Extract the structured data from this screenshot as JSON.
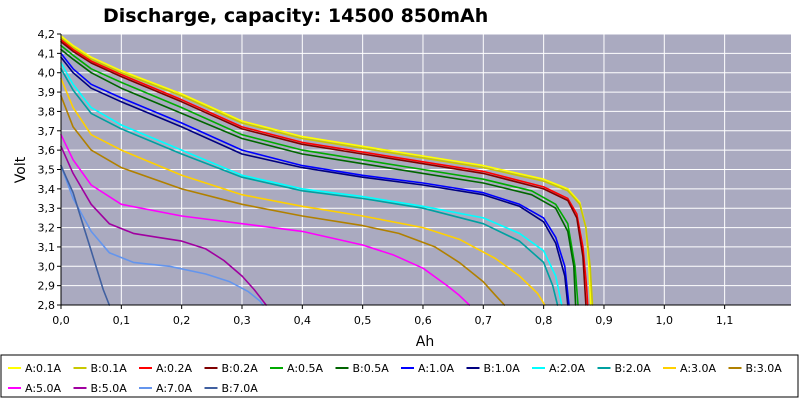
{
  "chart_data": {
    "type": "line",
    "title": "Discharge, capacity:  14500 850mAh",
    "xlabel": "Ah",
    "ylabel": "Volt",
    "xlim": [
      0,
      1.2
    ],
    "ylim": [
      2.8,
      4.2
    ],
    "xticks": [
      "0,0",
      "0,1",
      "0,2",
      "0,3",
      "0,4",
      "0,5",
      "0,6",
      "0,7",
      "0,8",
      "0,9",
      "1,0",
      "1,1"
    ],
    "yticks": [
      "4,2",
      "4,1",
      "4,0",
      "3,9",
      "3,8",
      "3,7",
      "3,6",
      "3,5",
      "3,4",
      "3,3",
      "3,2",
      "3,1",
      "3,0",
      "2,9",
      "2,8"
    ],
    "grid": true,
    "legend_position": "bottom",
    "colors": {
      "plot_background": "#aaaac0",
      "grid": "#ffffff"
    },
    "series": [
      {
        "name": "A:0.1A",
        "color": "#ffff00",
        "points": [
          [
            0,
            4.19
          ],
          [
            0.02,
            4.14
          ],
          [
            0.05,
            4.08
          ],
          [
            0.1,
            4.01
          ],
          [
            0.2,
            3.89
          ],
          [
            0.3,
            3.75
          ],
          [
            0.4,
            3.67
          ],
          [
            0.5,
            3.62
          ],
          [
            0.6,
            3.57
          ],
          [
            0.7,
            3.52
          ],
          [
            0.8,
            3.45
          ],
          [
            0.84,
            3.4
          ],
          [
            0.86,
            3.33
          ],
          [
            0.87,
            3.2
          ],
          [
            0.875,
            3.0
          ],
          [
            0.878,
            2.8
          ]
        ]
      },
      {
        "name": "B:0.1A",
        "color": "#c8c800",
        "points": [
          [
            0,
            4.18
          ],
          [
            0.02,
            4.13
          ],
          [
            0.05,
            4.07
          ],
          [
            0.1,
            4.0
          ],
          [
            0.2,
            3.88
          ],
          [
            0.3,
            3.74
          ],
          [
            0.4,
            3.66
          ],
          [
            0.5,
            3.61
          ],
          [
            0.6,
            3.56
          ],
          [
            0.7,
            3.51
          ],
          [
            0.8,
            3.44
          ],
          [
            0.84,
            3.39
          ],
          [
            0.86,
            3.32
          ],
          [
            0.87,
            3.2
          ],
          [
            0.877,
            3.0
          ],
          [
            0.881,
            2.8
          ]
        ]
      },
      {
        "name": "A:0.2A",
        "color": "#ff0000",
        "points": [
          [
            0,
            4.17
          ],
          [
            0.02,
            4.12
          ],
          [
            0.05,
            4.06
          ],
          [
            0.1,
            3.99
          ],
          [
            0.2,
            3.86
          ],
          [
            0.3,
            3.72
          ],
          [
            0.4,
            3.64
          ],
          [
            0.5,
            3.59
          ],
          [
            0.6,
            3.54
          ],
          [
            0.7,
            3.49
          ],
          [
            0.8,
            3.41
          ],
          [
            0.84,
            3.35
          ],
          [
            0.855,
            3.27
          ],
          [
            0.865,
            3.1
          ],
          [
            0.871,
            2.9
          ],
          [
            0.873,
            2.8
          ]
        ]
      },
      {
        "name": "B:0.2A",
        "color": "#800000",
        "points": [
          [
            0,
            4.16
          ],
          [
            0.02,
            4.11
          ],
          [
            0.05,
            4.05
          ],
          [
            0.1,
            3.98
          ],
          [
            0.2,
            3.85
          ],
          [
            0.3,
            3.71
          ],
          [
            0.4,
            3.63
          ],
          [
            0.5,
            3.58
          ],
          [
            0.6,
            3.53
          ],
          [
            0.7,
            3.48
          ],
          [
            0.8,
            3.4
          ],
          [
            0.84,
            3.34
          ],
          [
            0.855,
            3.25
          ],
          [
            0.865,
            3.05
          ],
          [
            0.87,
            2.8
          ]
        ]
      },
      {
        "name": "A:0.5A",
        "color": "#00aa00",
        "points": [
          [
            0,
            4.14
          ],
          [
            0.02,
            4.09
          ],
          [
            0.05,
            4.02
          ],
          [
            0.1,
            3.95
          ],
          [
            0.2,
            3.82
          ],
          [
            0.3,
            3.68
          ],
          [
            0.4,
            3.6
          ],
          [
            0.5,
            3.55
          ],
          [
            0.6,
            3.5
          ],
          [
            0.7,
            3.45
          ],
          [
            0.78,
            3.39
          ],
          [
            0.82,
            3.32
          ],
          [
            0.84,
            3.22
          ],
          [
            0.852,
            3.0
          ],
          [
            0.857,
            2.8
          ]
        ]
      },
      {
        "name": "B:0.5A",
        "color": "#006400",
        "points": [
          [
            0,
            4.12
          ],
          [
            0.02,
            4.07
          ],
          [
            0.05,
            4.0
          ],
          [
            0.1,
            3.92
          ],
          [
            0.2,
            3.79
          ],
          [
            0.3,
            3.66
          ],
          [
            0.4,
            3.58
          ],
          [
            0.5,
            3.53
          ],
          [
            0.6,
            3.48
          ],
          [
            0.7,
            3.43
          ],
          [
            0.78,
            3.37
          ],
          [
            0.82,
            3.3
          ],
          [
            0.84,
            3.18
          ],
          [
            0.85,
            3.0
          ],
          [
            0.853,
            2.8
          ]
        ]
      },
      {
        "name": "A:1.0A",
        "color": "#0000ff",
        "points": [
          [
            0,
            4.1
          ],
          [
            0.02,
            4.02
          ],
          [
            0.05,
            3.94
          ],
          [
            0.1,
            3.87
          ],
          [
            0.2,
            3.74
          ],
          [
            0.3,
            3.6
          ],
          [
            0.4,
            3.52
          ],
          [
            0.5,
            3.47
          ],
          [
            0.6,
            3.43
          ],
          [
            0.7,
            3.38
          ],
          [
            0.76,
            3.32
          ],
          [
            0.8,
            3.25
          ],
          [
            0.82,
            3.15
          ],
          [
            0.835,
            3.0
          ],
          [
            0.842,
            2.8
          ]
        ]
      },
      {
        "name": "B:1.0A",
        "color": "#000080",
        "points": [
          [
            0,
            4.08
          ],
          [
            0.02,
            4.0
          ],
          [
            0.05,
            3.92
          ],
          [
            0.1,
            3.85
          ],
          [
            0.2,
            3.72
          ],
          [
            0.3,
            3.58
          ],
          [
            0.4,
            3.51
          ],
          [
            0.5,
            3.46
          ],
          [
            0.6,
            3.42
          ],
          [
            0.7,
            3.37
          ],
          [
            0.76,
            3.31
          ],
          [
            0.8,
            3.23
          ],
          [
            0.82,
            3.12
          ],
          [
            0.835,
            2.95
          ],
          [
            0.84,
            2.8
          ]
        ]
      },
      {
        "name": "A:2.0A",
        "color": "#00ffff",
        "points": [
          [
            0,
            4.05
          ],
          [
            0.02,
            3.94
          ],
          [
            0.05,
            3.82
          ],
          [
            0.1,
            3.73
          ],
          [
            0.2,
            3.6
          ],
          [
            0.3,
            3.47
          ],
          [
            0.4,
            3.4
          ],
          [
            0.5,
            3.36
          ],
          [
            0.6,
            3.31
          ],
          [
            0.7,
            3.25
          ],
          [
            0.76,
            3.17
          ],
          [
            0.8,
            3.08
          ],
          [
            0.82,
            2.95
          ],
          [
            0.83,
            2.8
          ]
        ]
      },
      {
        "name": "B:2.0A",
        "color": "#00a0a0",
        "points": [
          [
            0,
            4.02
          ],
          [
            0.02,
            3.91
          ],
          [
            0.05,
            3.79
          ],
          [
            0.1,
            3.71
          ],
          [
            0.2,
            3.58
          ],
          [
            0.3,
            3.46
          ],
          [
            0.4,
            3.39
          ],
          [
            0.5,
            3.35
          ],
          [
            0.6,
            3.3
          ],
          [
            0.7,
            3.22
          ],
          [
            0.76,
            3.13
          ],
          [
            0.8,
            3.02
          ],
          [
            0.815,
            2.9
          ],
          [
            0.823,
            2.8
          ]
        ]
      },
      {
        "name": "A:3.0A",
        "color": "#ffd000",
        "points": [
          [
            0,
            3.97
          ],
          [
            0.02,
            3.82
          ],
          [
            0.05,
            3.68
          ],
          [
            0.1,
            3.6
          ],
          [
            0.2,
            3.47
          ],
          [
            0.3,
            3.37
          ],
          [
            0.4,
            3.31
          ],
          [
            0.5,
            3.26
          ],
          [
            0.6,
            3.2
          ],
          [
            0.66,
            3.14
          ],
          [
            0.72,
            3.04
          ],
          [
            0.76,
            2.95
          ],
          [
            0.79,
            2.86
          ],
          [
            0.802,
            2.8
          ]
        ]
      },
      {
        "name": "B:3.0A",
        "color": "#b08000",
        "points": [
          [
            0,
            3.88
          ],
          [
            0.02,
            3.72
          ],
          [
            0.05,
            3.6
          ],
          [
            0.1,
            3.51
          ],
          [
            0.2,
            3.4
          ],
          [
            0.3,
            3.32
          ],
          [
            0.4,
            3.26
          ],
          [
            0.5,
            3.21
          ],
          [
            0.56,
            3.17
          ],
          [
            0.62,
            3.1
          ],
          [
            0.66,
            3.02
          ],
          [
            0.7,
            2.92
          ],
          [
            0.72,
            2.85
          ],
          [
            0.735,
            2.8
          ]
        ]
      },
      {
        "name": "A:5.0A",
        "color": "#ff00ff",
        "points": [
          [
            0,
            3.68
          ],
          [
            0.02,
            3.55
          ],
          [
            0.05,
            3.42
          ],
          [
            0.1,
            3.32
          ],
          [
            0.2,
            3.26
          ],
          [
            0.3,
            3.22
          ],
          [
            0.4,
            3.18
          ],
          [
            0.5,
            3.11
          ],
          [
            0.55,
            3.06
          ],
          [
            0.6,
            2.99
          ],
          [
            0.64,
            2.9
          ],
          [
            0.66,
            2.85
          ],
          [
            0.677,
            2.8
          ]
        ]
      },
      {
        "name": "B:5.0A",
        "color": "#a000a0",
        "points": [
          [
            0,
            3.62
          ],
          [
            0.02,
            3.48
          ],
          [
            0.05,
            3.32
          ],
          [
            0.08,
            3.22
          ],
          [
            0.12,
            3.17
          ],
          [
            0.16,
            3.15
          ],
          [
            0.2,
            3.13
          ],
          [
            0.24,
            3.09
          ],
          [
            0.27,
            3.03
          ],
          [
            0.3,
            2.95
          ],
          [
            0.32,
            2.88
          ],
          [
            0.34,
            2.8
          ]
        ]
      },
      {
        "name": "A:7.0A",
        "color": "#6495ed",
        "points": [
          [
            0,
            3.52
          ],
          [
            0.02,
            3.35
          ],
          [
            0.05,
            3.18
          ],
          [
            0.08,
            3.07
          ],
          [
            0.12,
            3.02
          ],
          [
            0.18,
            3.0
          ],
          [
            0.24,
            2.96
          ],
          [
            0.28,
            2.92
          ],
          [
            0.31,
            2.87
          ],
          [
            0.33,
            2.82
          ],
          [
            0.335,
            2.8
          ]
        ]
      },
      {
        "name": "B:7.0A",
        "color": "#4060a0",
        "points": [
          [
            0,
            3.52
          ],
          [
            0.01,
            3.45
          ],
          [
            0.02,
            3.38
          ],
          [
            0.03,
            3.28
          ],
          [
            0.04,
            3.18
          ],
          [
            0.05,
            3.08
          ],
          [
            0.06,
            2.98
          ],
          [
            0.07,
            2.88
          ],
          [
            0.08,
            2.8
          ]
        ]
      }
    ]
  }
}
